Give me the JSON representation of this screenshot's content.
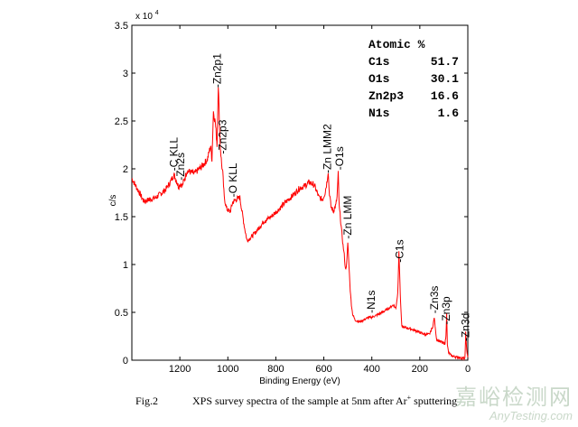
{
  "chart_data": {
    "type": "line",
    "title": "",
    "xlabel": "Binding Energy (eV)",
    "ylabel": "c/s",
    "xlim": [
      1400,
      0
    ],
    "ylim": [
      0,
      35000
    ],
    "y_multiplier_label": "x 10",
    "y_multiplier_exp": "4",
    "x_ticks": [
      "1200",
      "1000",
      "800",
      "600",
      "400",
      "200",
      "0"
    ],
    "y_ticks": [
      "0",
      "0.5",
      "1",
      "1.5",
      "2",
      "2.5",
      "3",
      "3.5"
    ],
    "series": [
      {
        "name": "XPS survey spectrum",
        "color": "#ff0000",
        "x": [
          1400,
          1350,
          1300,
          1260,
          1240,
          1225,
          1215,
          1205,
          1198,
          1190,
          1170,
          1140,
          1110,
          1085,
          1072,
          1066,
          1060,
          1052,
          1045,
          1040,
          1032,
          1026,
          1021,
          1015,
          1005,
          990,
          980,
          965,
          950,
          940,
          930,
          920,
          905,
          880,
          850,
          820,
          790,
          760,
          730,
          700,
          680,
          660,
          640,
          620,
          605,
          595,
          588,
          582,
          578,
          570,
          560,
          550,
          545,
          540,
          536,
          532,
          528,
          520,
          515,
          510,
          505,
          500,
          495,
          490,
          485,
          480,
          470,
          450,
          420,
          400,
          380,
          350,
          330,
          310,
          300,
          292,
          287,
          284,
          280,
          275,
          260,
          240,
          210,
          180,
          160,
          145,
          140,
          135,
          130,
          120,
          110,
          100,
          95,
          91,
          88,
          85,
          80,
          70,
          60,
          50,
          40,
          30,
          20,
          12,
          10,
          9,
          6,
          3,
          0
        ],
        "values": [
          19000,
          16600,
          17000,
          17800,
          18600,
          19400,
          18800,
          18100,
          18500,
          18200,
          19800,
          19500,
          20200,
          21000,
          22400,
          21000,
          26000,
          24800,
          22500,
          28900,
          22500,
          20500,
          19500,
          17000,
          15800,
          15500,
          16500,
          16800,
          17000,
          15400,
          13800,
          12500,
          12800,
          13500,
          14500,
          15000,
          15700,
          16500,
          17200,
          18000,
          18200,
          18600,
          18300,
          17000,
          16800,
          17500,
          18500,
          19800,
          17800,
          16000,
          15600,
          16200,
          17000,
          19500,
          16000,
          15200,
          14000,
          12000,
          11000,
          9500,
          10000,
          12300,
          9800,
          7300,
          5800,
          4800,
          4200,
          4000,
          4400,
          4500,
          4700,
          5100,
          5400,
          5800,
          5400,
          7000,
          11500,
          9000,
          6000,
          3500,
          3400,
          3300,
          3000,
          2700,
          2700,
          3600,
          4500,
          3200,
          2200,
          2000,
          1900,
          1700,
          1800,
          2500,
          5000,
          1500,
          800,
          500,
          400,
          350,
          300,
          250,
          200,
          170,
          1600,
          2900,
          1600,
          800,
          300
        ]
      }
    ],
    "annotations": [
      {
        "text": "-Zn2p3",
        "x": 1022
      },
      {
        "text": "-Zn2p1",
        "x": 1045
      },
      {
        "text": "-O KLL",
        "x": 978
      },
      {
        "text": "-C KLL",
        "x": 1225
      },
      {
        "text": "-Zn2s",
        "x": 1196
      },
      {
        "text": "-Zn LMM2",
        "x": 585
      },
      {
        "text": "-O1s",
        "x": 534
      },
      {
        "text": "-Zn LMM",
        "x": 500
      },
      {
        "text": "-N1s",
        "x": 402
      },
      {
        "text": "-C1s",
        "x": 285
      },
      {
        "text": "-Zn3s",
        "x": 140
      },
      {
        "text": "-Zn3p",
        "x": 90
      },
      {
        "text": "-Zn3d",
        "x": 10
      }
    ],
    "table": {
      "header": "Atomic %",
      "rows": [
        {
          "label": "C1s",
          "value": "51.7"
        },
        {
          "label": "O1s",
          "value": "30.1"
        },
        {
          "label": "Zn2p3",
          "value": "16.6"
        },
        {
          "label": "N1s",
          "value": "1.6"
        }
      ]
    }
  },
  "caption": {
    "fig": "Fig.2",
    "text": "XPS survey spectra of the sample at 5nm after Ar",
    "sup": "+",
    "tail": " sputtering"
  },
  "watermark": {
    "cn": "嘉峪检测网",
    "en": "AnyTesting.com"
  }
}
